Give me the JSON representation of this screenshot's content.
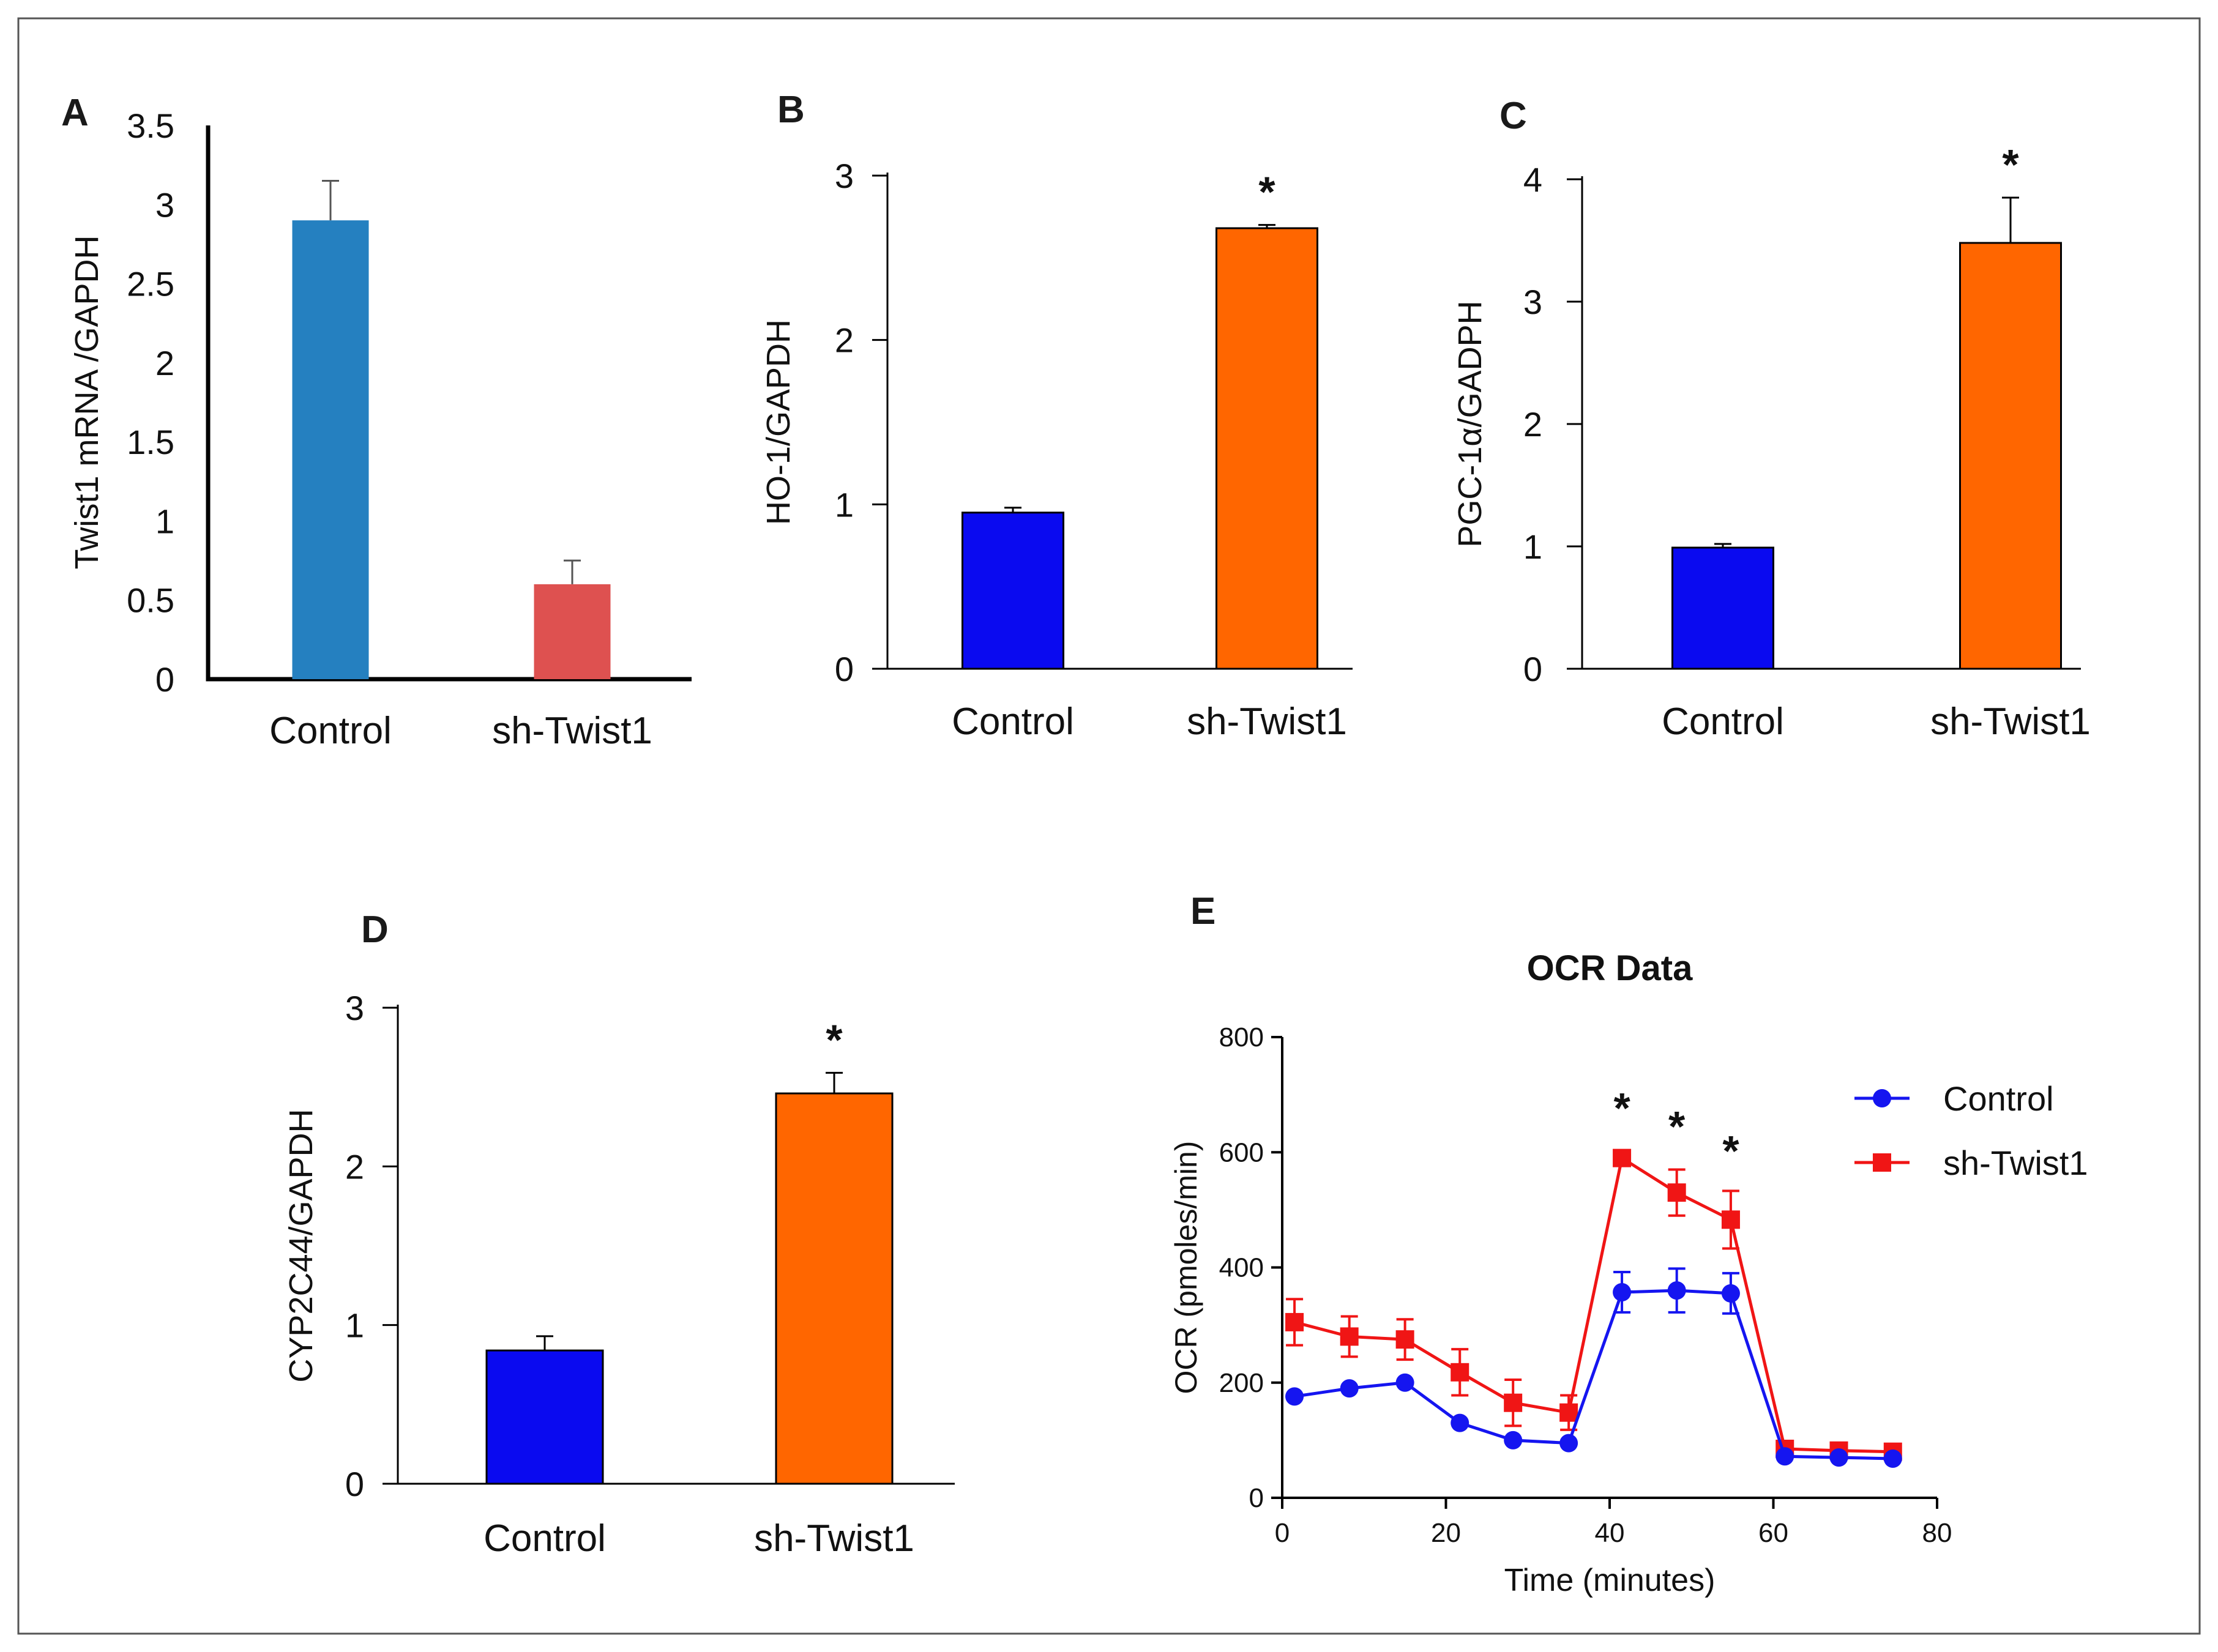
{
  "chart_data": [
    {
      "id": "A",
      "panel_label": "A",
      "type": "bar",
      "ylabel": "Twist1 mRNA /GAPDH",
      "ylim": [
        0,
        3.5
      ],
      "yticks": [
        "0",
        "0.5",
        "1",
        "1.5",
        "2",
        "2.5",
        "3",
        "3.5"
      ],
      "tick_values": [
        0,
        0.5,
        1,
        1.5,
        2,
        2.5,
        3,
        3.5
      ],
      "categories": [
        "Control",
        "sh-Twist1"
      ],
      "values": [
        2.9,
        0.6
      ],
      "errors": [
        0.25,
        0.15
      ],
      "colors": [
        "#2580C0",
        "#DE5150"
      ],
      "significance": [
        "",
        ""
      ]
    },
    {
      "id": "B",
      "panel_label": "B",
      "type": "bar",
      "ylabel": "HO-1/GAPDH",
      "ylim": [
        0,
        3
      ],
      "yticks": [
        "0",
        "1",
        "2",
        "3"
      ],
      "tick_values": [
        0,
        1,
        2,
        3
      ],
      "categories": [
        "Control",
        "sh-Twist1"
      ],
      "values": [
        0.95,
        2.68
      ],
      "errors": [
        0.03,
        0.02
      ],
      "colors": [
        "#0A0AF0",
        "#FF6600"
      ],
      "significance": [
        "",
        "*"
      ]
    },
    {
      "id": "C",
      "panel_label": "C",
      "type": "bar",
      "ylabel": "PGC-1α/GADPH",
      "ylim": [
        0,
        4
      ],
      "yticks": [
        "0",
        "1",
        "2",
        "3",
        "4"
      ],
      "tick_values": [
        0,
        1,
        2,
        3,
        4
      ],
      "categories": [
        "Control",
        "sh-Twist1"
      ],
      "values": [
        0.99,
        3.48
      ],
      "errors": [
        0.03,
        0.37
      ],
      "colors": [
        "#0A0AF0",
        "#FF6600"
      ],
      "significance": [
        "",
        "*"
      ]
    },
    {
      "id": "D",
      "panel_label": "D",
      "type": "bar",
      "ylabel": "CYP2C44/GAPDH",
      "ylim": [
        0,
        3
      ],
      "yticks": [
        "0",
        "1",
        "2",
        "3"
      ],
      "tick_values": [
        0,
        1,
        2,
        3
      ],
      "categories": [
        "Control",
        "sh-Twist1"
      ],
      "values": [
        0.84,
        2.46
      ],
      "errors": [
        0.09,
        0.13
      ],
      "colors": [
        "#0A0AF0",
        "#FF6600"
      ],
      "significance": [
        "",
        "*"
      ]
    },
    {
      "id": "E",
      "panel_label": "E",
      "type": "line",
      "title": "OCR Data",
      "xlabel": "Time (minutes)",
      "ylabel": "OCR (pmoles/min)",
      "xlim": [
        0,
        80
      ],
      "ylim": [
        0,
        800
      ],
      "xticks": [
        "0",
        "20",
        "40",
        "60",
        "80"
      ],
      "xtick_values": [
        0,
        20,
        40,
        60,
        80
      ],
      "yticks": [
        "0",
        "200",
        "400",
        "600",
        "800"
      ],
      "ytick_values": [
        0,
        200,
        400,
        600,
        800
      ],
      "legend_position": "top-right",
      "x": [
        1.5,
        8.2,
        15,
        21.7,
        28.2,
        35,
        41.5,
        48.2,
        54.8,
        61.4,
        68,
        74.6
      ],
      "series": [
        {
          "name": "Control",
          "legend_label": "Control",
          "color": "#1515F0",
          "marker": "circle",
          "values": [
            176,
            190,
            200,
            130,
            100,
            95,
            357,
            360,
            355,
            72,
            70,
            68
          ],
          "errors": [
            0,
            0,
            0,
            0,
            0,
            0,
            35,
            38,
            35,
            0,
            0,
            0
          ]
        },
        {
          "name": "sh-Twist1",
          "legend_label": " sh-Twist1",
          "color": "#F01515",
          "marker": "square",
          "values": [
            305,
            280,
            275,
            218,
            165,
            148,
            590,
            530,
            483,
            85,
            82,
            80
          ],
          "errors": [
            40,
            35,
            35,
            40,
            40,
            30,
            0,
            40,
            50,
            0,
            0,
            0
          ]
        }
      ],
      "annotations": [
        {
          "x": 41.5,
          "text": "*"
        },
        {
          "x": 48.2,
          "text": "*"
        },
        {
          "x": 54.8,
          "text": "*"
        }
      ]
    }
  ]
}
